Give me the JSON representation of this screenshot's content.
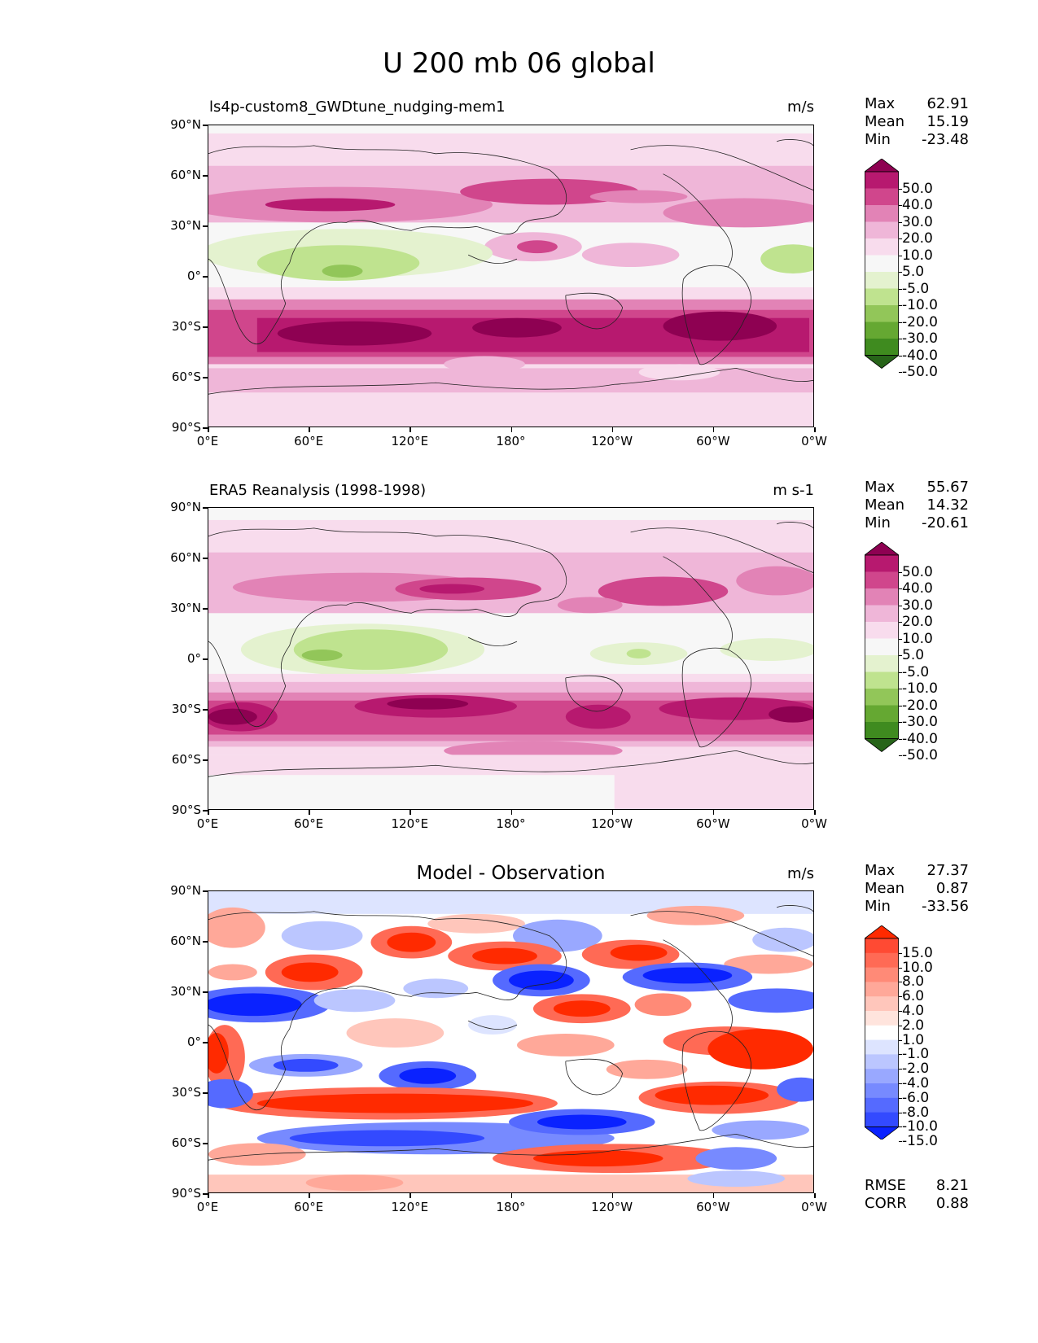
{
  "figure_title": "U 200 mb 06 global",
  "lat_ticks": [
    "90°N",
    "60°N",
    "30°N",
    "0°",
    "30°S",
    "60°S",
    "90°S"
  ],
  "lon_ticks": [
    "0°E",
    "60°E",
    "120°E",
    "180°",
    "120°W",
    "60°W",
    "0°W"
  ],
  "panels": [
    {
      "title": "ls4p-custom8_GWDtune_nudging-mem1",
      "units": "m/s",
      "stats": {
        "max_label": "Max",
        "max": "62.91",
        "mean_label": "Mean",
        "mean": "15.19",
        "min_label": "Min",
        "min": "-23.48"
      },
      "colorbar": {
        "labels": [
          "50.0",
          "40.0",
          "30.0",
          "20.0",
          "10.0",
          "5.0",
          "-5.0",
          "-10.0",
          "-20.0",
          "-30.0",
          "-40.0",
          "-50.0"
        ],
        "colors": [
          "#8e0152",
          "#b7196f",
          "#d0468c",
          "#e283b6",
          "#efb6d8",
          "#f8dced",
          "#f7f7f7",
          "#e4f2cf",
          "#bfe38f",
          "#92c659",
          "#65a832",
          "#3f8b1f",
          "#276419"
        ]
      }
    },
    {
      "title": "ERA5 Reanalysis (1998-1998)",
      "units": "m s-1",
      "stats": {
        "max_label": "Max",
        "max": "55.67",
        "mean_label": "Mean",
        "mean": "14.32",
        "min_label": "Min",
        "min": "-20.61"
      },
      "colorbar": {
        "labels": [
          "50.0",
          "40.0",
          "30.0",
          "20.0",
          "10.0",
          "5.0",
          "-5.0",
          "-10.0",
          "-20.0",
          "-30.0",
          "-40.0",
          "-50.0"
        ],
        "colors": [
          "#8e0152",
          "#b7196f",
          "#d0468c",
          "#e283b6",
          "#efb6d8",
          "#f8dced",
          "#f7f7f7",
          "#e4f2cf",
          "#bfe38f",
          "#92c659",
          "#65a832",
          "#3f8b1f",
          "#276419"
        ]
      }
    },
    {
      "title": "Model - Observation",
      "units": "m/s",
      "stats": {
        "max_label": "Max",
        "max": "27.37",
        "mean_label": "Mean",
        "mean": "0.87",
        "min_label": "Min",
        "min": "-33.56"
      },
      "colorbar": {
        "labels": [
          "15.0",
          "10.0",
          "8.0",
          "6.0",
          "4.0",
          "2.0",
          "1.0",
          "-1.0",
          "-2.0",
          "-4.0",
          "-6.0",
          "-8.0",
          "-10.0",
          "-15.0"
        ],
        "colors": [
          "#ff2a00",
          "#ff4a33",
          "#ff6a55",
          "#ff8a77",
          "#ffa899",
          "#ffc6bb",
          "#ffe4dd",
          "#ffffff",
          "#dde4ff",
          "#bbc6ff",
          "#99a8ff",
          "#778aff",
          "#556aff",
          "#334aff",
          "#0a22ff"
        ]
      },
      "rmse_label": "RMSE",
      "rmse": "8.21",
      "corr_label": "CORR",
      "corr": "0.88"
    }
  ]
}
